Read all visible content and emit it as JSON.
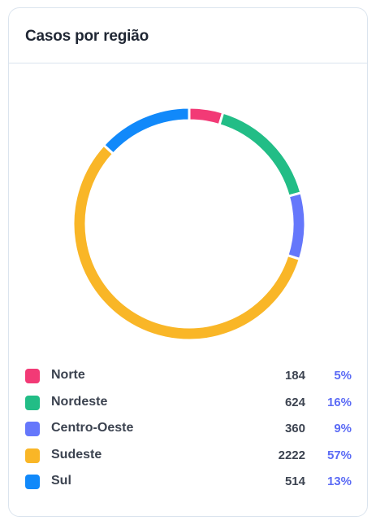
{
  "card": {
    "title": "Casos por região"
  },
  "chart_data": {
    "type": "pie",
    "donut": true,
    "title": "Casos por região",
    "categories": [
      "Norte",
      "Nordeste",
      "Centro-Oeste",
      "Sudeste",
      "Sul"
    ],
    "values": [
      184,
      624,
      360,
      2222,
      514
    ],
    "percent_labels": [
      "5%",
      "16%",
      "9%",
      "57%",
      "13%"
    ],
    "colors": [
      "#f23a76",
      "#22bd86",
      "#6577fb",
      "#f9b627",
      "#1189fa"
    ],
    "legend_position": "bottom"
  },
  "legend": [
    {
      "label": "Norte",
      "value": "184",
      "percent": "5%"
    },
    {
      "label": "Nordeste",
      "value": "624",
      "percent": "16%"
    },
    {
      "label": "Centro-Oeste",
      "value": "360",
      "percent": "9%"
    },
    {
      "label": "Sudeste",
      "value": "2222",
      "percent": "57%"
    },
    {
      "label": "Sul",
      "value": "514",
      "percent": "13%"
    }
  ]
}
